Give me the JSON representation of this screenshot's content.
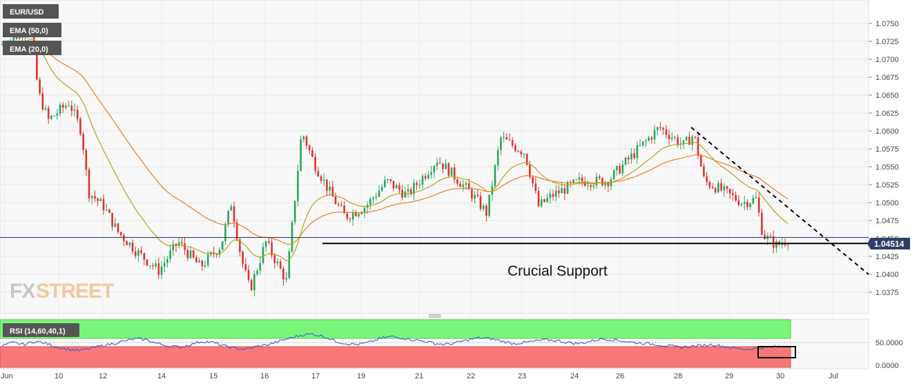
{
  "chart_data": [
    {
      "type": "candlestick",
      "symbol": "EUR/USD",
      "indicators": [
        {
          "label": "EMA (50,0)",
          "color": "#f07a26"
        },
        {
          "label": "EMA (20,0)",
          "color": "#b5a21a"
        }
      ],
      "current_price": "1.04514",
      "ylim": [
        1.035,
        1.0775
      ],
      "y_ticks": [
        "1.0750",
        "1.0725",
        "1.0700",
        "1.0675",
        "1.0650",
        "1.0625",
        "1.0600",
        "1.0575",
        "1.0550",
        "1.0525",
        "1.0500",
        "1.0475",
        "1.0450",
        "1.0425",
        "1.0400",
        "1.0375"
      ],
      "x_ticks": [
        "Jun",
        "10",
        "12",
        "14",
        "15",
        "16",
        "17",
        "19",
        "21",
        "22",
        "23",
        "24",
        "26",
        "28",
        "29",
        "30",
        "Jul"
      ],
      "annotation": "Crucial Support",
      "support_level": 1.0443,
      "trendline": {
        "from": [
          "Jun 28",
          1.0605
        ],
        "to": [
          "Jul 1",
          1.04
        ]
      },
      "close_path": [
        [
          "Jun 9",
          1.072
        ],
        [
          "Jun 9",
          1.074
        ],
        [
          "Jun 10",
          1.065
        ],
        [
          "Jun 10",
          1.0615
        ],
        [
          "Jun 11",
          1.064
        ],
        [
          "Jun 11",
          1.061
        ],
        [
          "Jun 12",
          1.0515
        ],
        [
          "Jun 12",
          1.049
        ],
        [
          "Jun 13",
          1.046
        ],
        [
          "Jun 13",
          1.042
        ],
        [
          "Jun 14",
          1.0405
        ],
        [
          "Jun 14",
          1.044
        ],
        [
          "Jun 15",
          1.046
        ],
        [
          "Jun 15",
          1.044
        ],
        [
          "Jun 15",
          1.05
        ],
        [
          "Jun 15",
          1.042
        ],
        [
          "Jun 16",
          1.0385
        ],
        [
          "Jun 16",
          1.044
        ],
        [
          "Jun 16",
          1.04
        ],
        [
          "Jun 17",
          1.06
        ],
        [
          "Jun 17",
          1.056
        ],
        [
          "Jun 18",
          1.0525
        ],
        [
          "Jun 18",
          1.05
        ],
        [
          "Jun 19",
          1.049
        ],
        [
          "Jun 20",
          1.0525
        ],
        [
          "Jun 21",
          1.054
        ],
        [
          "Jun 21",
          1.058
        ],
        [
          "Jun 21",
          1.054
        ],
        [
          "Jun 22",
          1.052
        ],
        [
          "Jun 22",
          1.049
        ],
        [
          "Jun 22",
          1.059
        ],
        [
          "Jun 23",
          1.057
        ],
        [
          "Jun 23",
          1.05
        ],
        [
          "Jun 24",
          1.052
        ],
        [
          "Jun 24",
          1.054
        ],
        [
          "Jun 25",
          1.053
        ],
        [
          "Jun 26",
          1.057
        ],
        [
          "Jun 26",
          1.06
        ],
        [
          "Jun 27",
          1.0585
        ],
        [
          "Jun 28",
          1.06
        ],
        [
          "Jun 28",
          1.053
        ],
        [
          "Jun 28",
          1.052
        ],
        [
          "Jun 29",
          1.05
        ],
        [
          "Jun 29",
          1.047
        ],
        [
          "Jun 30",
          1.044
        ],
        [
          "Jun 30",
          1.0451
        ]
      ]
    },
    {
      "type": "line",
      "title": "RSI (14,60,40,1)",
      "ylim": [
        0,
        100
      ],
      "y_ticks": [
        "50.0000",
        "0.0000"
      ],
      "upper_band": 60,
      "lower_band": 40,
      "values": [
        45,
        52,
        48,
        55,
        50,
        42,
        38,
        35,
        40,
        45,
        50,
        55,
        60,
        58,
        50,
        45,
        42,
        48,
        55,
        52,
        45,
        40,
        38,
        44,
        48,
        55,
        62,
        68,
        70,
        65,
        55,
        50,
        48,
        52,
        60,
        65,
        62,
        58,
        55,
        50,
        48,
        52,
        58,
        62,
        60,
        55,
        50,
        52,
        55,
        58,
        56,
        52,
        50,
        55,
        60,
        58,
        55,
        52,
        50,
        48,
        45,
        42,
        44,
        46,
        48,
        44,
        40,
        38,
        40,
        42,
        44,
        45
      ]
    }
  ]
}
